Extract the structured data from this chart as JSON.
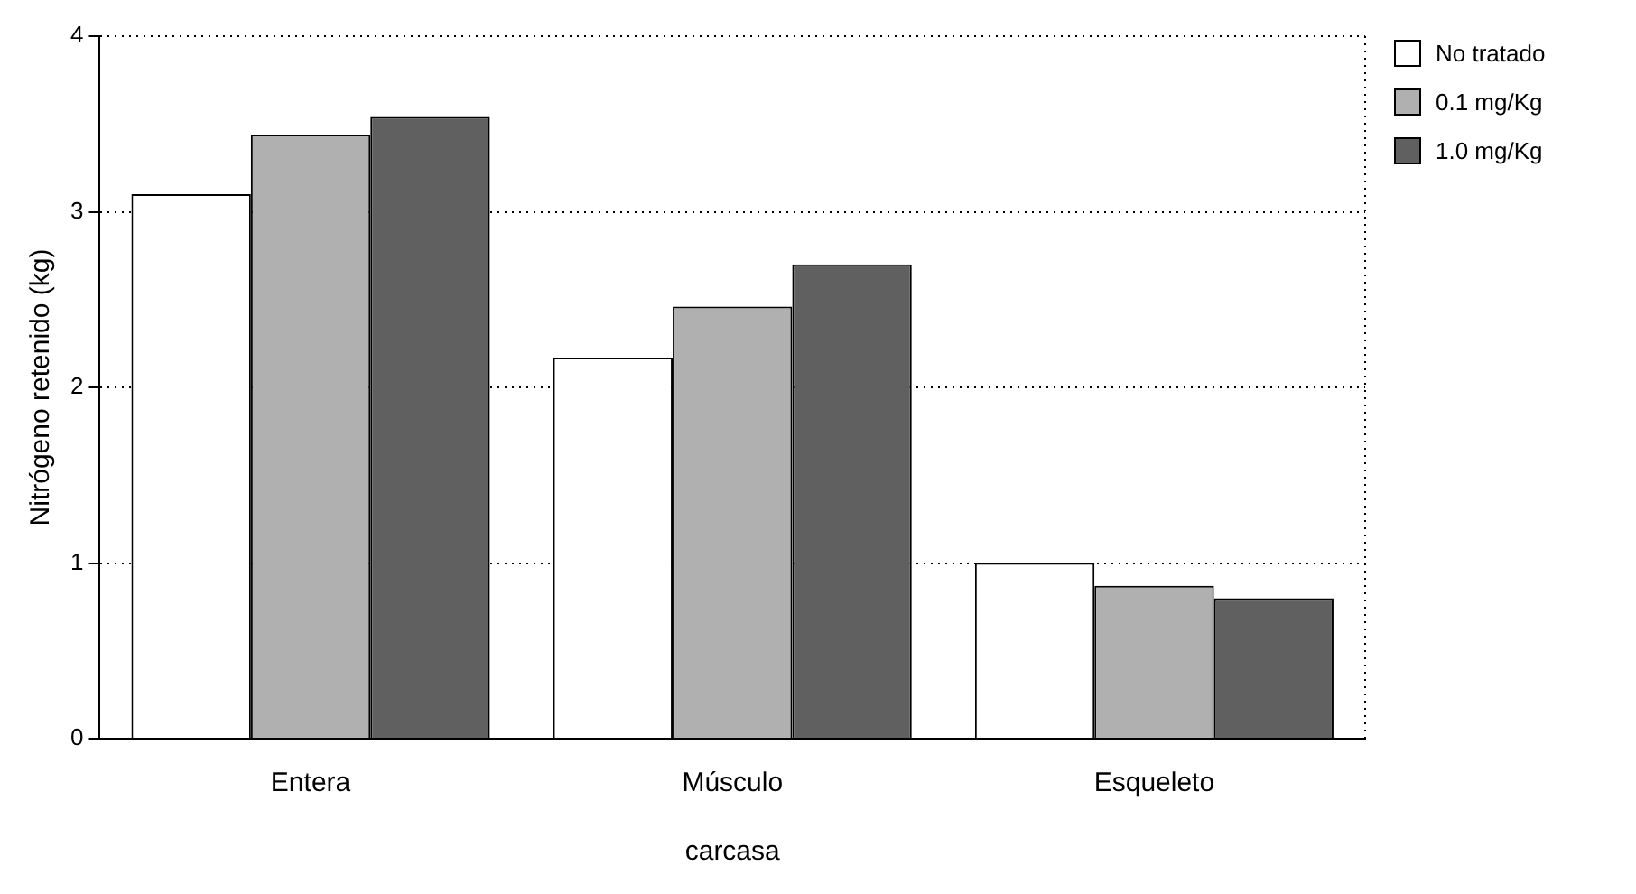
{
  "chart_data": {
    "type": "bar",
    "xlabel": "carcasa",
    "ylabel": "Nitrógeno retenido (kg)",
    "categories": [
      "Entera",
      "Músculo",
      "Esqueleto"
    ],
    "series": [
      {
        "name": "No tratado",
        "color": "#ffffff",
        "values": [
          3.1,
          2.17,
          1.0
        ]
      },
      {
        "name": "0.1 mg/Kg",
        "color": "#b0b0b0",
        "values": [
          3.44,
          2.46,
          0.87
        ]
      },
      {
        "name": "1.0 mg/Kg",
        "color": "#606060",
        "values": [
          3.54,
          2.7,
          0.8
        ]
      }
    ],
    "ylim": [
      0,
      4
    ],
    "yticks": [
      0,
      1,
      2,
      3,
      4
    ],
    "grid": "y",
    "legend": "top right"
  }
}
